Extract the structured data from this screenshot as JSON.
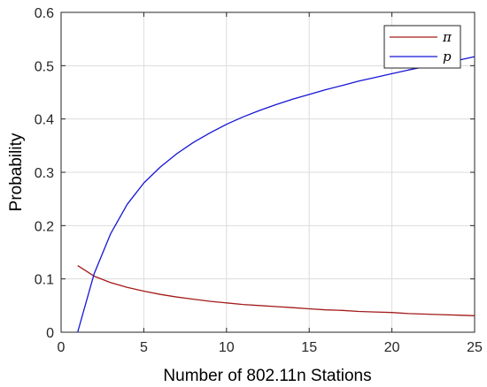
{
  "chart_data": {
    "type": "line",
    "title": "",
    "xlabel": "Number of 802.11n Stations",
    "ylabel": "Probability",
    "xlim": [
      0,
      25
    ],
    "ylim": [
      0,
      0.6
    ],
    "xticks": [
      0,
      5,
      10,
      15,
      20,
      25
    ],
    "yticks": [
      0,
      0.1,
      0.2,
      0.3,
      0.4,
      0.5,
      0.6
    ],
    "xtick_labels": [
      "0",
      "5",
      "10",
      "15",
      "20",
      "25"
    ],
    "ytick_labels": [
      "0",
      "0.1",
      "0.2",
      "0.3",
      "0.4",
      "0.5",
      "0.6"
    ],
    "grid": true,
    "legend_position": "top-right",
    "series": [
      {
        "name": "π",
        "color": "#a31a1a",
        "x": [
          1,
          2,
          3,
          4,
          5,
          6,
          7,
          8,
          9,
          10,
          11,
          12,
          13,
          14,
          15,
          16,
          17,
          18,
          19,
          20,
          21,
          22,
          23,
          24,
          25
        ],
        "y": [
          0.125,
          0.105,
          0.093,
          0.084,
          0.077,
          0.071,
          0.066,
          0.062,
          0.058,
          0.055,
          0.052,
          0.05,
          0.048,
          0.046,
          0.044,
          0.042,
          0.041,
          0.039,
          0.038,
          0.037,
          0.035,
          0.034,
          0.033,
          0.032,
          0.031
        ]
      },
      {
        "name": "p",
        "color": "#1515d6",
        "x": [
          1,
          2,
          3,
          4,
          5,
          6,
          7,
          8,
          9,
          10,
          11,
          12,
          13,
          14,
          15,
          16,
          17,
          18,
          19,
          20,
          21,
          22,
          23,
          24,
          25
        ],
        "y": [
          0.0,
          0.11,
          0.185,
          0.24,
          0.28,
          0.31,
          0.335,
          0.356,
          0.374,
          0.39,
          0.404,
          0.416,
          0.427,
          0.437,
          0.446,
          0.455,
          0.463,
          0.471,
          0.478,
          0.485,
          0.492,
          0.498,
          0.504,
          0.51,
          0.517
        ]
      }
    ]
  }
}
